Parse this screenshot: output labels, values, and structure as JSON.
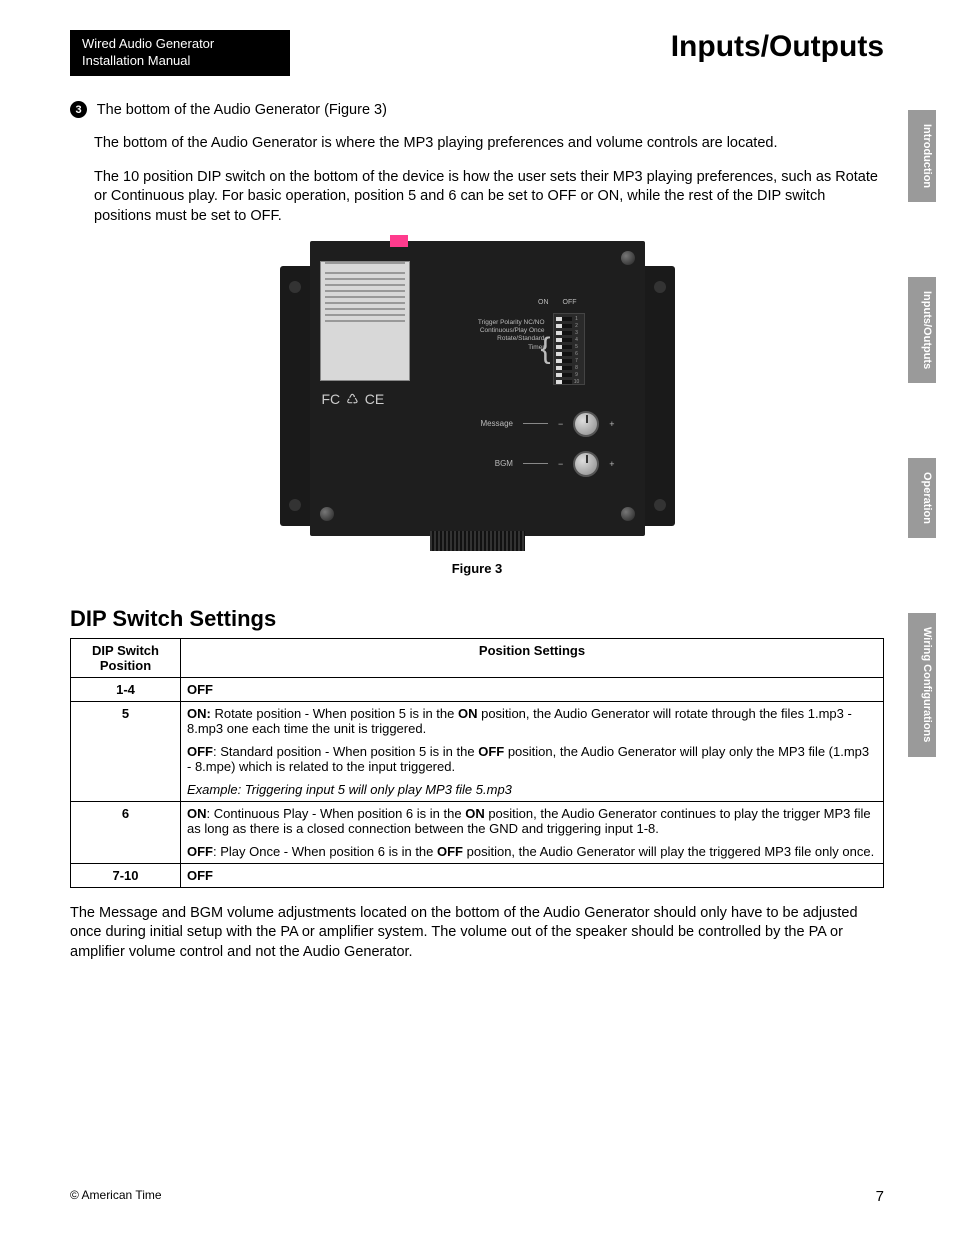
{
  "header": {
    "left_line1": "Wired Audio Generator",
    "left_line2": "Installation Manual",
    "right_title": "Inputs/Outputs"
  },
  "side_tabs": [
    "Introduction",
    "Inputs/Outputs",
    "Operation",
    "Wiring Configurations"
  ],
  "section": {
    "number": "3",
    "title": "The bottom of the Audio Generator (Figure 3)",
    "para1": "The bottom of the Audio Generator is where the MP3 playing preferences and volume controls are located.",
    "para2": "The 10 position DIP switch on the bottom of the device is how the user sets their MP3 playing preferences, such as Rotate or Continuous play. For basic operation, position 5 and 6 can be set to OFF or ON, while the rest of the DIP switch positions must be set to OFF."
  },
  "figure": {
    "caption": "Figure 3",
    "dip_on": "ON",
    "dip_off": "OFF",
    "dip_label1": "Trigger Polarity NC/NO",
    "dip_label2": "Continuous/Play Once",
    "dip_label3": "Rotate/Standard",
    "dip_label4": "Timer",
    "knob1": "Message",
    "knob2": "BGM",
    "dip_count": 10
  },
  "dip_section": {
    "heading": "DIP Switch Settings",
    "col1": "DIP Switch Position",
    "col2": "Position Settings",
    "rows": [
      {
        "pos": "1-4",
        "cells": [
          {
            "bold_lead": "OFF",
            "text": ""
          }
        ]
      },
      {
        "pos": "5",
        "cells": [
          {
            "bold_lead": "ON:",
            "text": " Rotate position - When position 5 is in the ",
            "bold_mid": "ON",
            "text2": " position, the Audio Generator will rotate through the files 1.mp3 - 8.mp3 one each time the unit is triggered."
          },
          {
            "bold_lead": "OFF",
            "text": ": Standard position - When position 5 is in the ",
            "bold_mid": "OFF",
            "text2": " position, the Audio Generator will play only the MP3 file (1.mp3 - 8.mpe) which is related to the input triggered."
          },
          {
            "italic": "Example: Triggering input 5 will only play MP3 file 5.mp3"
          }
        ]
      },
      {
        "pos": "6",
        "cells": [
          {
            "bold_lead": "ON",
            "text": ": Continuous Play - When position 6 is in the ",
            "bold_mid": "ON",
            "text2": " position, the Audio Generator continues to play the trigger MP3 file as long as there is a closed connection between the GND and triggering input 1-8."
          },
          {
            "bold_lead": "OFF",
            "text": ": Play Once - When position 6 is in the ",
            "bold_mid": "OFF",
            "text2": " position, the Audio Generator will play the triggered MP3 file only once."
          }
        ]
      },
      {
        "pos": "7-10",
        "cells": [
          {
            "bold_lead": "OFF",
            "text": ""
          }
        ]
      }
    ]
  },
  "bottom_para": "The Message and BGM volume adjustments located on the bottom of the Audio Generator should only have to be adjusted once during initial setup with the PA or amplifier system. The volume out of the speaker should be controlled by the PA or amplifier volume control and not the Audio Generator.",
  "footer": {
    "copyright": "© American Time",
    "page": "7"
  },
  "colors": {
    "tab_bg": "#9a9a9a",
    "device_bg": "#1e1e1e",
    "pink": "#ff3b8d"
  }
}
